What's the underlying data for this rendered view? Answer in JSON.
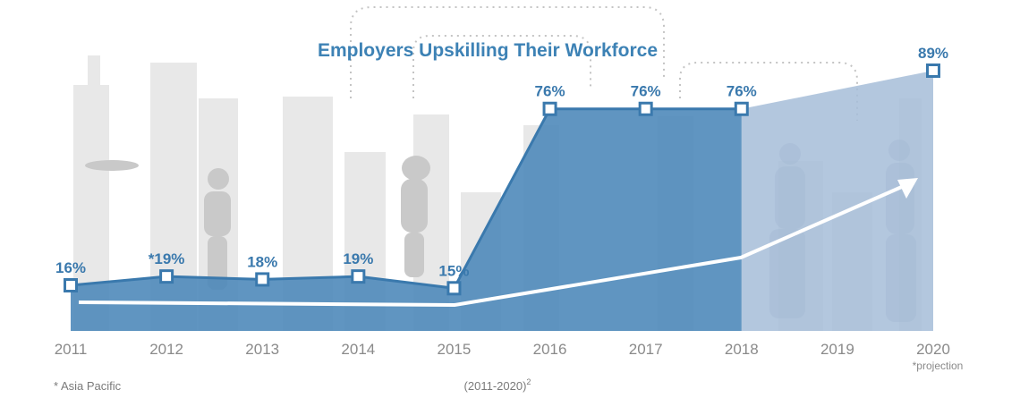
{
  "chart_data": {
    "type": "area",
    "title": "Employers Upskilling Their Workforce",
    "subtitle": "(2011-2020)",
    "subtitle_sup": "2",
    "categories": [
      "2011",
      "2012",
      "2013",
      "2014",
      "2015",
      "2016",
      "2017",
      "2018",
      "2019",
      "2020"
    ],
    "series": [
      {
        "values": [
          16,
          19,
          18,
          19,
          15,
          76,
          76,
          76,
          null,
          89
        ],
        "labels": [
          "16%",
          "*19%",
          "18%",
          "19%",
          "15%",
          "76%",
          "76%",
          "76%",
          "",
          "89%"
        ]
      }
    ],
    "projection_from": "2018",
    "projection_note": "*projection",
    "footnote": "* Asia Pacific",
    "ylim": [
      0,
      100
    ],
    "colors": {
      "area": "#4a86b8",
      "projection_area": "#a6bdd8",
      "line": "#3a79ad",
      "marker_fill": "#ffffff",
      "trend_line": "#ffffff",
      "title": "#3d82b5",
      "axis_text": "#8a8a8a",
      "background_art": "#e6e6e6"
    }
  }
}
